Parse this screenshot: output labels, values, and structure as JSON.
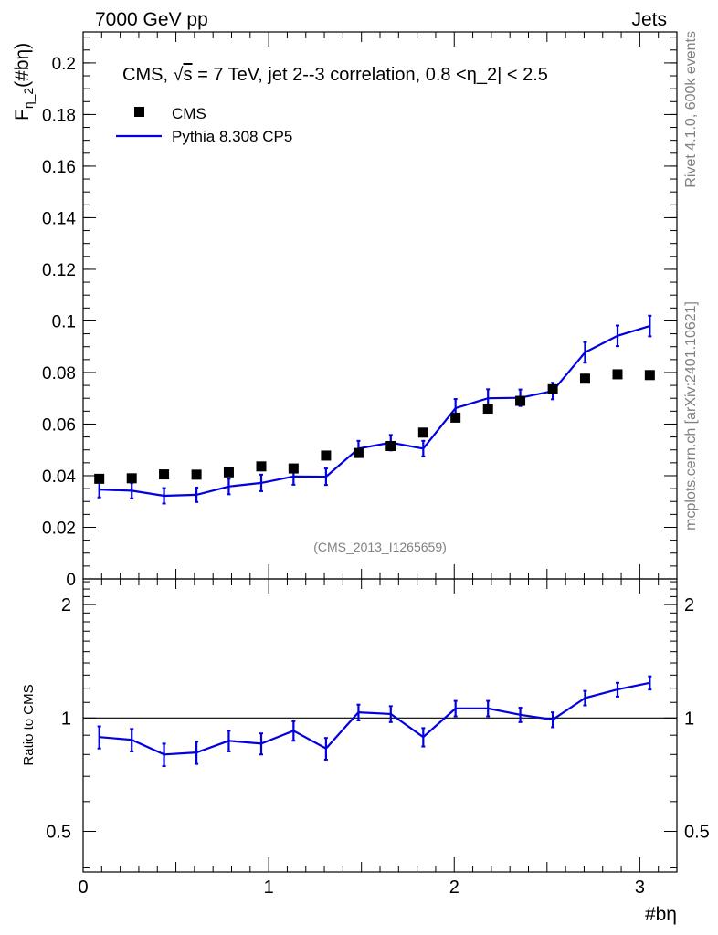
{
  "header": {
    "left": "7000 GeV pp",
    "right": "Jets"
  },
  "side_labels": {
    "rivet": "Rivet 4.1.0,  600k events",
    "mcplots": "mcplots.cern.ch [arXiv:2401.10621]"
  },
  "analysis_id": "(CMS_2013_I1265659)",
  "colors": {
    "data": "#000000",
    "mc": "#0000e0",
    "axis": "#000000"
  },
  "chart_data": [
    {
      "type": "scatter",
      "panel": "main",
      "title": "CMS, √s = 7 TeV, jet 2--3 correlation, 0.8 <η_2| < 2.5",
      "title_parts": {
        "prefix": "CMS, √",
        "s": "s",
        "rest": " = 7 TeV, jet 2--3 correlation, 0.8 <η_2| < 2.5"
      },
      "ylabel": "F",
      "ylabel_sub": "η_2",
      "ylabel_tail": "(#bη)",
      "xlim": [
        0,
        3.2
      ],
      "ylim": [
        0,
        0.212
      ],
      "yticks": [
        0,
        0.02,
        0.04,
        0.06,
        0.08,
        0.1,
        0.12,
        0.14,
        0.16,
        0.18,
        0.2
      ],
      "ytick_labels": [
        "0",
        "0.02",
        "0.04",
        "0.06",
        "0.08",
        "0.1",
        "0.12",
        "0.14",
        "0.16",
        "0.18",
        "0.2"
      ],
      "legend": [
        {
          "name": "CMS",
          "style": "marker"
        },
        {
          "name": "Pythia 8.308 CP5",
          "style": "line"
        }
      ],
      "x": [
        0.087,
        0.262,
        0.436,
        0.611,
        0.785,
        0.96,
        1.134,
        1.309,
        1.484,
        1.658,
        1.833,
        2.007,
        2.182,
        2.356,
        2.531,
        2.705,
        2.88,
        3.054
      ],
      "series": [
        {
          "name": "CMS",
          "values": [
            0.0388,
            0.039,
            0.0405,
            0.0404,
            0.0413,
            0.0436,
            0.0428,
            0.0478,
            0.0488,
            0.0515,
            0.0567,
            0.0625,
            0.066,
            0.069,
            0.0735,
            0.0776,
            0.0793,
            0.079
          ]
        },
        {
          "name": "Pythia 8.308 CP5",
          "values": [
            0.0346,
            0.0342,
            0.0322,
            0.0326,
            0.0358,
            0.0372,
            0.0397,
            0.0396,
            0.0505,
            0.0528,
            0.0505,
            0.0662,
            0.07,
            0.0702,
            0.0728,
            0.0878,
            0.0942,
            0.098
          ],
          "errors": [
            0.003,
            0.003,
            0.003,
            0.0028,
            0.003,
            0.0032,
            0.0032,
            0.0032,
            0.003,
            0.003,
            0.003,
            0.0035,
            0.0035,
            0.0032,
            0.0032,
            0.004,
            0.004,
            0.004
          ]
        }
      ]
    },
    {
      "type": "line",
      "panel": "ratio",
      "ylabel": "Ratio to CMS",
      "xlabel": "#bη",
      "xlim": [
        0,
        3.2
      ],
      "ylim": [
        0.39,
        2.34
      ],
      "ylog": true,
      "xticks": [
        0,
        1,
        2,
        3
      ],
      "xtick_labels": [
        "0",
        "1",
        "2",
        "3"
      ],
      "yticks": [
        0.5,
        1,
        2
      ],
      "ytick_labels": [
        "0.5",
        "1",
        "2"
      ],
      "x": [
        0.087,
        0.262,
        0.436,
        0.611,
        0.785,
        0.96,
        1.134,
        1.309,
        1.484,
        1.658,
        1.833,
        2.007,
        2.182,
        2.356,
        2.531,
        2.705,
        2.88,
        3.054
      ],
      "series": [
        {
          "name": "Pythia 8.308 CP5",
          "values": [
            0.89,
            0.875,
            0.8,
            0.81,
            0.87,
            0.855,
            0.925,
            0.83,
            1.035,
            1.025,
            0.89,
            1.06,
            1.06,
            1.02,
            0.99,
            1.13,
            1.19,
            1.24
          ],
          "errors": [
            0.06,
            0.06,
            0.055,
            0.055,
            0.055,
            0.055,
            0.055,
            0.055,
            0.05,
            0.05,
            0.05,
            0.05,
            0.05,
            0.045,
            0.045,
            0.05,
            0.05,
            0.05
          ]
        }
      ]
    }
  ]
}
